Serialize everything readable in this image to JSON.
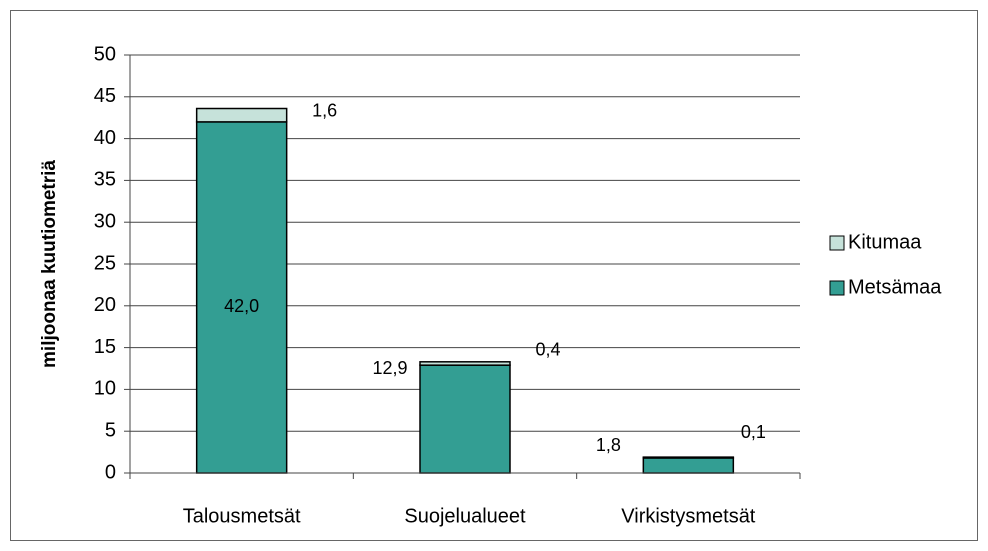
{
  "chart_data": {
    "type": "stacked_bar",
    "ylabel": "miljoonaa kuutiometriä",
    "categories": [
      "Talousmetsät",
      "Suojelualueet",
      "Virkistysmetsät"
    ],
    "series": [
      {
        "name": "Metsämaa",
        "color": "#339e93",
        "values": [
          42.0,
          12.9,
          1.8
        ],
        "value_labels": [
          "42,0",
          "12,9",
          "1,8"
        ]
      },
      {
        "name": "Kitumaa",
        "color": "#c6e2da",
        "values": [
          1.6,
          0.4,
          0.1
        ],
        "value_labels": [
          "1,6",
          "0,4",
          "0,1"
        ]
      }
    ],
    "ylim": [
      0,
      50
    ],
    "yticks": [
      0,
      5,
      10,
      15,
      20,
      25,
      30,
      35,
      40,
      45,
      50
    ],
    "grid": true,
    "legend": "right"
  }
}
